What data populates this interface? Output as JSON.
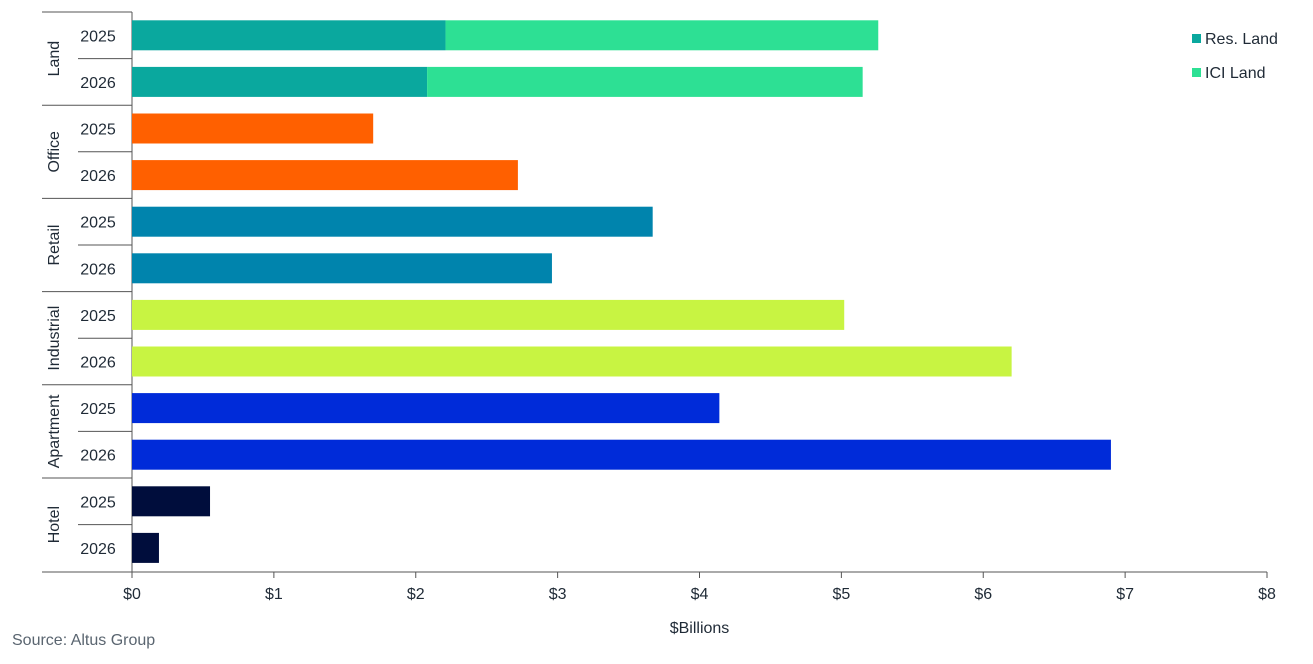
{
  "chart_data": {
    "type": "bar",
    "orientation": "horizontal",
    "stacked": true,
    "xlabel": "$Billions",
    "xlim": [
      0,
      8
    ],
    "xticks": [
      0,
      1,
      2,
      3,
      4,
      5,
      6,
      7,
      8
    ],
    "xtick_labels": [
      "$0",
      "$1",
      "$2",
      "$3",
      "$4",
      "$5",
      "$6",
      "$7",
      "$8"
    ],
    "grid": false,
    "legend_position": "top-right",
    "legend": [
      {
        "label": "Res. Land",
        "color": "#0aa89e"
      },
      {
        "label": "ICI Land",
        "color": "#2de094"
      }
    ],
    "groups": [
      {
        "name": "Land",
        "bars": [
          {
            "label": "2025",
            "segments": [
              {
                "series": "Res. Land",
                "value": 2.21,
                "color": "#0aa89e"
              },
              {
                "series": "ICI Land",
                "value": 3.05,
                "color": "#2de094"
              }
            ]
          },
          {
            "label": "2026",
            "segments": [
              {
                "series": "Res. Land",
                "value": 2.08,
                "color": "#0aa89e"
              },
              {
                "series": "ICI Land",
                "value": 3.07,
                "color": "#2de094"
              }
            ]
          }
        ]
      },
      {
        "name": "Office",
        "bars": [
          {
            "label": "2025",
            "segments": [
              {
                "value": 1.7,
                "color": "#ff6000"
              }
            ]
          },
          {
            "label": "2026",
            "segments": [
              {
                "value": 2.72,
                "color": "#ff6000"
              }
            ]
          }
        ]
      },
      {
        "name": "Retail",
        "bars": [
          {
            "label": "2025",
            "segments": [
              {
                "value": 3.67,
                "color": "#0084ad"
              }
            ]
          },
          {
            "label": "2026",
            "segments": [
              {
                "value": 2.96,
                "color": "#0084ad"
              }
            ]
          }
        ]
      },
      {
        "name": "Industrial",
        "bars": [
          {
            "label": "2025",
            "segments": [
              {
                "value": 5.02,
                "color": "#c8f442"
              }
            ]
          },
          {
            "label": "2026",
            "segments": [
              {
                "value": 6.2,
                "color": "#c8f442"
              }
            ]
          }
        ]
      },
      {
        "name": "Apartment",
        "bars": [
          {
            "label": "2025",
            "segments": [
              {
                "value": 4.14,
                "color": "#002bd9"
              }
            ]
          },
          {
            "label": "2026",
            "segments": [
              {
                "value": 6.9,
                "color": "#002bd9"
              }
            ]
          }
        ]
      },
      {
        "name": "Hotel",
        "bars": [
          {
            "label": "2025",
            "segments": [
              {
                "value": 0.55,
                "color": "#000d3c"
              }
            ]
          },
          {
            "label": "2026",
            "segments": [
              {
                "value": 0.19,
                "color": "#000d3c"
              }
            ]
          }
        ]
      }
    ]
  },
  "source": "Source:  Altus Group"
}
